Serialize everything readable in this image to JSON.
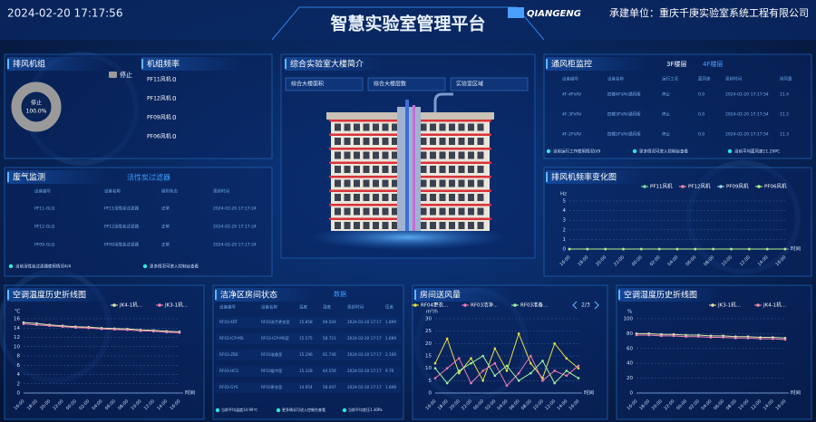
{
  "header": {
    "datetime": "2024-02-20 17:17:56",
    "title": "智慧实验室管理平台",
    "logo": "QIANGENG",
    "builder": "承建单位：重庆千庚实验室系统工程有限公司"
  },
  "fan_group": {
    "title": "排风机组",
    "legend": "停止",
    "center_label": "停止",
    "values": [
      100
    ],
    "value_labels": [
      "100.0%"
    ],
    "color": "#9a9a9a"
  },
  "fan_freq": {
    "title": "机组频率",
    "rows": [
      [
        "PF11风机",
        0
      ],
      [
        "PF12风机",
        0
      ],
      [
        "PF09风机",
        0
      ],
      [
        "PF06风机",
        0
      ]
    ]
  },
  "building": {
    "title": "综合实验室大楼简介",
    "tabs": [
      "综合大楼面积",
      "综合大楼层数",
      "实验室区域"
    ]
  },
  "fume_hood": {
    "title": "通风柜监控",
    "floors": [
      "3F楼层",
      "4F楼层"
    ],
    "columns": [
      "设备编号",
      "设备名称",
      "运行工况",
      "面风速",
      "更新时间",
      "排风量"
    ],
    "rows": [
      [
        "4F-4FVAV",
        "四楼4FVAV通风柜",
        "停止",
        "0.0",
        "2024-02-20 17:17:54",
        "11.4"
      ],
      [
        "4F-3FVAV",
        "四楼3FVAV通风柜",
        "停止",
        "0.0",
        "2024-02-20 17:17:54",
        "11.2"
      ],
      [
        "4F-2FVAV",
        "四楼2FVAV通风柜",
        "停止",
        "0.0",
        "2024-02-20 17:17:54",
        "11.3"
      ]
    ],
    "footer": [
      "当前运行工作使用情况0/9",
      "更多情况可进入控制台查看",
      "当前平均面风速11.29PC"
    ]
  },
  "exhaust": {
    "title": "废气监测",
    "subtitle": "活性炭过滤器",
    "columns": [
      "设备编号",
      "设备名称",
      "吸附状态",
      "更新时间"
    ],
    "rows": [
      [
        "PF11-GLQ",
        "PF11活性炭过滤器",
        "正常",
        "2024-02-20 17:17:24"
      ],
      [
        "PF12-GLQ",
        "PF12活性炭过滤器",
        "正常",
        "2024-02-20 17:17:24"
      ],
      [
        "PF09-GLQ",
        "PF09活性炭过滤器",
        "正常",
        "2024-02-20 17:17:24"
      ]
    ],
    "footer": [
      "当前活性炭过滤器使用情况4/4",
      "更多情况可进入控制台查看"
    ]
  },
  "clean_room": {
    "title": "洁净区房间状态",
    "subtitle": "数据",
    "columns": [
      "设备编号",
      "设备名称",
      "温度",
      "湿度",
      "更新时间",
      "压差"
    ],
    "rows": [
      [
        "RF03-XRT",
        "RF03洗手更衣室",
        "15.858",
        "69.504",
        "2024-02-20 17:17",
        "1.899"
      ],
      [
        "RF03-ICP-MS",
        "RF03-ICP-MS室",
        "15.575",
        "58.721",
        "2024-02-20 17:17",
        "1.689"
      ],
      [
        "RF03-ZBS",
        "RF03准备室",
        "15.296",
        "61.746",
        "2024-02-20 17:17",
        "2.166"
      ],
      [
        "RF03-HCS",
        "RF03缓冲室",
        "15.328",
        "64.559",
        "2024-02-20 17:17",
        "9.76"
      ],
      [
        "RF03-GYS",
        "RF03更衣室",
        "14.954",
        "58.097",
        "2024-02-20 17:17",
        "1.898"
      ]
    ],
    "footer": [
      "当前平均温度14.99℃",
      "更多情况可进入控制台查看",
      "当前平均差压1.30Pa"
    ]
  },
  "charts": [
    {
      "type": "line",
      "title": "排风机频率变化图",
      "ylabel": "Hz",
      "xlabel": "时间",
      "categories": [
        "16:00",
        "18:00",
        "20:00",
        "22:00",
        "00:00",
        "02:00",
        "04:00",
        "06:00",
        "08:00",
        "10:00",
        "12:00",
        "14:00",
        "16:00"
      ],
      "ylim": [
        0,
        5
      ],
      "yticks": [
        0,
        1,
        2,
        3,
        4,
        5
      ],
      "grid": true,
      "series": [
        {
          "name": "PF11风机",
          "color": "#7be0a0",
          "values": [
            0,
            0,
            0,
            0,
            0,
            0,
            0,
            0,
            0,
            0,
            0,
            0,
            0
          ]
        },
        {
          "name": "PF12风机",
          "color": "#f08aa8",
          "values": [
            0,
            0,
            0,
            0,
            0,
            0,
            0,
            0,
            0,
            0,
            0,
            0,
            0
          ]
        },
        {
          "name": "PF09风机",
          "color": "#9fd4ff",
          "values": [
            0,
            0,
            0,
            0,
            0,
            0,
            0,
            0,
            0,
            0,
            0,
            0,
            0
          ]
        },
        {
          "name": "PF06风机",
          "color": "#b4f08c",
          "values": [
            0,
            0,
            0,
            0,
            0,
            0,
            0,
            0,
            0,
            0,
            0,
            0,
            0
          ]
        }
      ]
    },
    {
      "type": "line",
      "title": "空调温度历史折线图",
      "ylabel": "℃",
      "xlabel": "时间",
      "categories": [
        "16:00",
        "18:00",
        "20:00",
        "22:00",
        "00:00",
        "02:00",
        "04:00",
        "06:00",
        "08:00",
        "10:00",
        "12:00",
        "14:00",
        "16:00"
      ],
      "ylim": [
        0,
        16
      ],
      "yticks": [
        0,
        2,
        4,
        6,
        8,
        10,
        12,
        14,
        16
      ],
      "grid": true,
      "series": [
        {
          "name": "JK4-1机...",
          "color": "#dfe6b0",
          "values": [
            15.2,
            15.0,
            14.7,
            14.5,
            14.3,
            14.2,
            14.0,
            13.9,
            13.8,
            13.6,
            13.5,
            13.3,
            13.2
          ]
        },
        {
          "name": "JK3-1机...",
          "color": "#f08ab4",
          "values": [
            14.9,
            14.7,
            14.5,
            14.3,
            14.1,
            14.0,
            13.8,
            13.7,
            13.6,
            13.4,
            13.3,
            13.1,
            13.0
          ]
        }
      ]
    },
    {
      "type": "line",
      "title": "房间送风量",
      "ylabel": "m³/h",
      "xlabel": "时间",
      "pager": "2/3",
      "categories": [
        "16:00",
        "18:00",
        "20:00",
        "22:00",
        "00:00",
        "02:00",
        "04:00",
        "06:00",
        "08:00",
        "10:00",
        "12:00",
        "14:00",
        "16:00"
      ],
      "ylim": [
        0,
        30
      ],
      "yticks": [
        0,
        5,
        10,
        15,
        20,
        25,
        30
      ],
      "grid": true,
      "series": [
        {
          "name": "RF04更衣...",
          "color": "#e8e040",
          "values": [
            12,
            22,
            8,
            14,
            5,
            18,
            9,
            24,
            12,
            6,
            20,
            14,
            10
          ]
        },
        {
          "name": "RF03洁净...",
          "color": "#f07ab0",
          "values": [
            6,
            10,
            14,
            4,
            9,
            12,
            3,
            8,
            15,
            5,
            9,
            7,
            11
          ]
        },
        {
          "name": "RF03准备...",
          "color": "#a0f0a0",
          "values": [
            10,
            4,
            9,
            12,
            15,
            7,
            11,
            5,
            8,
            13,
            4,
            9,
            6
          ]
        }
      ]
    },
    {
      "type": "line",
      "title": "空调湿度历史折线图",
      "ylabel": "%",
      "xlabel": "时间",
      "categories": [
        "16:00",
        "18:00",
        "20:00",
        "22:00",
        "00:00",
        "02:00",
        "04:00",
        "06:00",
        "08:00",
        "10:00",
        "12:00",
        "14:00",
        "16:00"
      ],
      "ylim": [
        0,
        100
      ],
      "yticks": [
        0,
        20,
        40,
        60,
        80,
        100
      ],
      "grid": true,
      "series": [
        {
          "name": "JK3-1机...",
          "color": "#dfe6b0",
          "values": [
            80,
            80,
            79,
            79,
            78,
            78,
            77,
            77,
            76,
            76,
            75,
            75,
            74
          ]
        },
        {
          "name": "JK4-1机...",
          "color": "#f08ab4",
          "values": [
            78,
            78,
            77,
            77,
            76,
            76,
            75,
            75,
            74,
            74,
            73,
            73,
            72
          ]
        }
      ]
    }
  ]
}
